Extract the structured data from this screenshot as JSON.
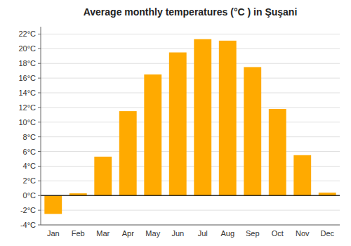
{
  "chart_data": {
    "type": "bar",
    "title": "Average monthly temperatures (°C ) in Şuşani",
    "categories": [
      "Jan",
      "Feb",
      "Mar",
      "Apr",
      "May",
      "Jun",
      "Jul",
      "Aug",
      "Sep",
      "Oct",
      "Nov",
      "Dec"
    ],
    "values": [
      -2.5,
      0.3,
      5.3,
      11.5,
      16.5,
      19.5,
      21.3,
      21.1,
      17.5,
      11.8,
      5.5,
      0.4
    ],
    "color": "#FFAA00",
    "ylim": [
      -4,
      23
    ],
    "yticks": [
      {
        "value": -4,
        "label": "-4°C"
      },
      {
        "value": -2,
        "label": "-2°C"
      },
      {
        "value": 0,
        "label": "0°C"
      },
      {
        "value": 2,
        "label": "2°C"
      },
      {
        "value": 4,
        "label": "4°C"
      },
      {
        "value": 6,
        "label": "6°C"
      },
      {
        "value": 8,
        "label": "8°C"
      },
      {
        "value": 10,
        "label": "10°C"
      },
      {
        "value": 12,
        "label": "12°C"
      },
      {
        "value": 14,
        "label": "14°C"
      },
      {
        "value": 16,
        "label": "16°C"
      },
      {
        "value": 18,
        "label": "18°C"
      },
      {
        "value": 20,
        "label": "20°C"
      },
      {
        "value": 22,
        "label": "22°C"
      }
    ],
    "grid": true
  }
}
